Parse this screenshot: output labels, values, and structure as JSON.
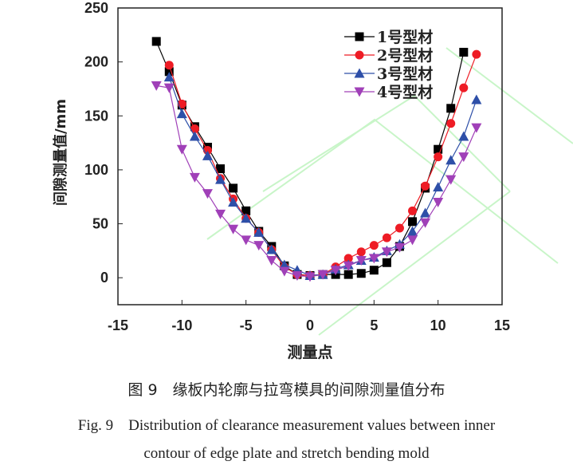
{
  "chart_data": {
    "type": "line",
    "xlabel": "测量点",
    "ylabel": "间隙测量值/mm",
    "xlim": [
      -15,
      15
    ],
    "ylim": [
      -25,
      250
    ],
    "xticks": [
      -15,
      -10,
      -5,
      0,
      5,
      10,
      15
    ],
    "yticks": [
      0,
      50,
      100,
      150,
      200,
      250
    ],
    "grid": false,
    "legend": "top-right",
    "series": [
      {
        "name": "1号型材",
        "color": "#000000",
        "marker": "square",
        "x": [
          -12,
          -11,
          -10,
          -9,
          -8,
          -7,
          -6,
          -5,
          -4,
          -3,
          -2,
          -1,
          0,
          1,
          2,
          3,
          4,
          5,
          6,
          7,
          8,
          9,
          10,
          11,
          12
        ],
        "y": [
          219,
          191,
          160,
          140,
          121,
          101,
          83,
          62,
          43,
          29,
          11,
          3,
          2,
          3,
          3,
          3,
          4,
          7,
          14,
          29,
          52,
          83,
          119,
          157,
          209
        ]
      },
      {
        "name": "2号型材",
        "color": "#ee1c25",
        "marker": "circle",
        "x": [
          -11,
          -10,
          -9,
          -8,
          -7,
          -6,
          -5,
          -4,
          -3,
          -2,
          -1,
          0,
          1,
          2,
          3,
          4,
          5,
          6,
          7,
          8,
          9,
          10,
          11,
          12,
          13
        ],
        "y": [
          197,
          161,
          138,
          118,
          92,
          73,
          55,
          42,
          26,
          10,
          3,
          2,
          3,
          10,
          18,
          24,
          30,
          37,
          46,
          62,
          85,
          112,
          143,
          176,
          207
        ]
      },
      {
        "name": "3号型材",
        "color": "#2e4fa8",
        "marker": "triangle-up",
        "x": [
          -11,
          -10,
          -9,
          -8,
          -7,
          -6,
          -5,
          -4,
          -3,
          -2,
          -1,
          0,
          1,
          2,
          3,
          4,
          5,
          6,
          7,
          8,
          9,
          10,
          11,
          12,
          13
        ],
        "y": [
          186,
          152,
          131,
          113,
          91,
          70,
          55,
          42,
          26,
          12,
          7,
          2,
          3,
          8,
          12,
          16,
          19,
          25,
          31,
          43,
          60,
          84,
          109,
          131,
          165
        ]
      },
      {
        "name": "4号型材",
        "color": "#a040b8",
        "marker": "triangle-down",
        "x": [
          -12,
          -11,
          -10,
          -9,
          -8,
          -7,
          -6,
          -5,
          -4,
          -3,
          -2,
          -1,
          0,
          1,
          2,
          3,
          4,
          5,
          6,
          7,
          8,
          9,
          10,
          11,
          12,
          13
        ],
        "y": [
          178,
          176,
          119,
          93,
          78,
          59,
          45,
          35,
          30,
          16,
          6,
          2,
          1,
          3,
          7,
          11,
          16,
          18,
          24,
          28,
          35,
          51,
          70,
          91,
          112,
          139
        ]
      }
    ]
  },
  "caption": {
    "zh": "图 9　缘板内轮廓与拉弯模具的间隙测量值分布",
    "en_line1": "Fig. 9　Distribution of clearance measurement values between inner",
    "en_line2": "contour of edge plate and stretch bending mold"
  }
}
